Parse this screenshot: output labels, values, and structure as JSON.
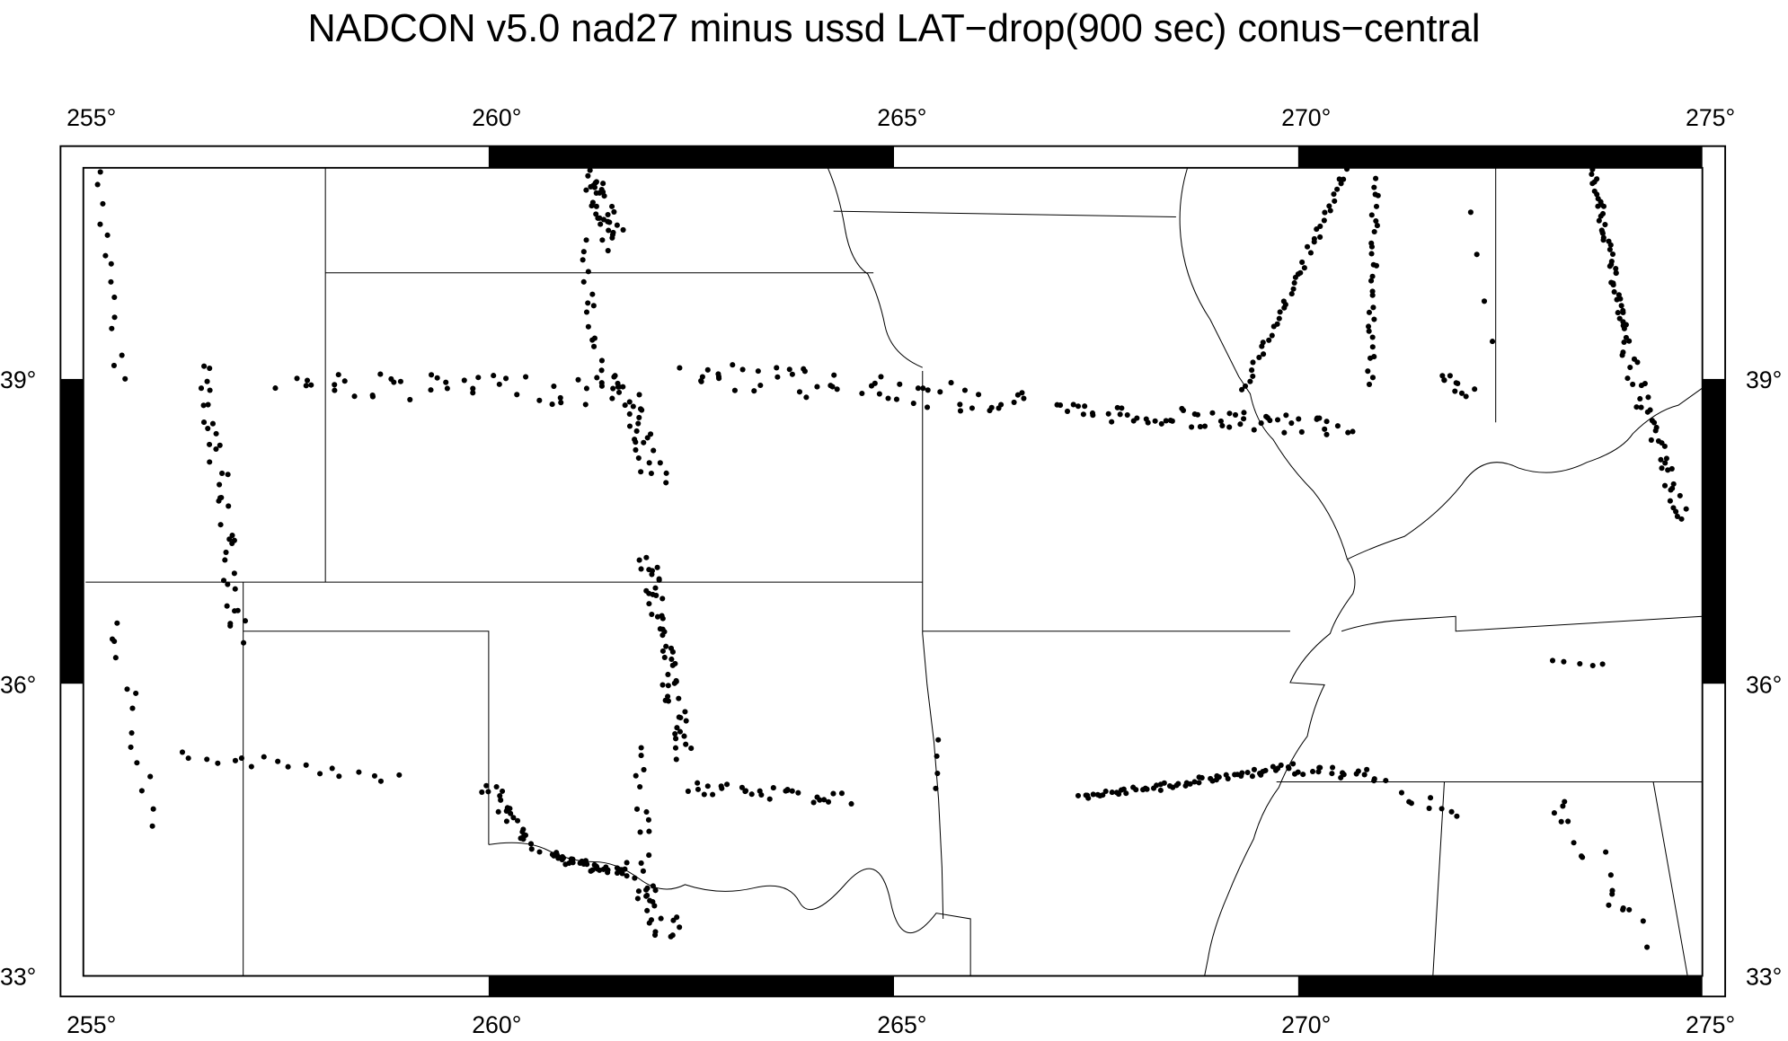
{
  "map": {
    "title": "NADCON v5.0 nad27 minus ussd LAT−drop(900 sec) conus−central",
    "lon_labels": [
      "255°",
      "260°",
      "265°",
      "270°",
      "275°"
    ],
    "lat_labels": [
      "39°",
      "36°",
      "33°"
    ]
  }
}
